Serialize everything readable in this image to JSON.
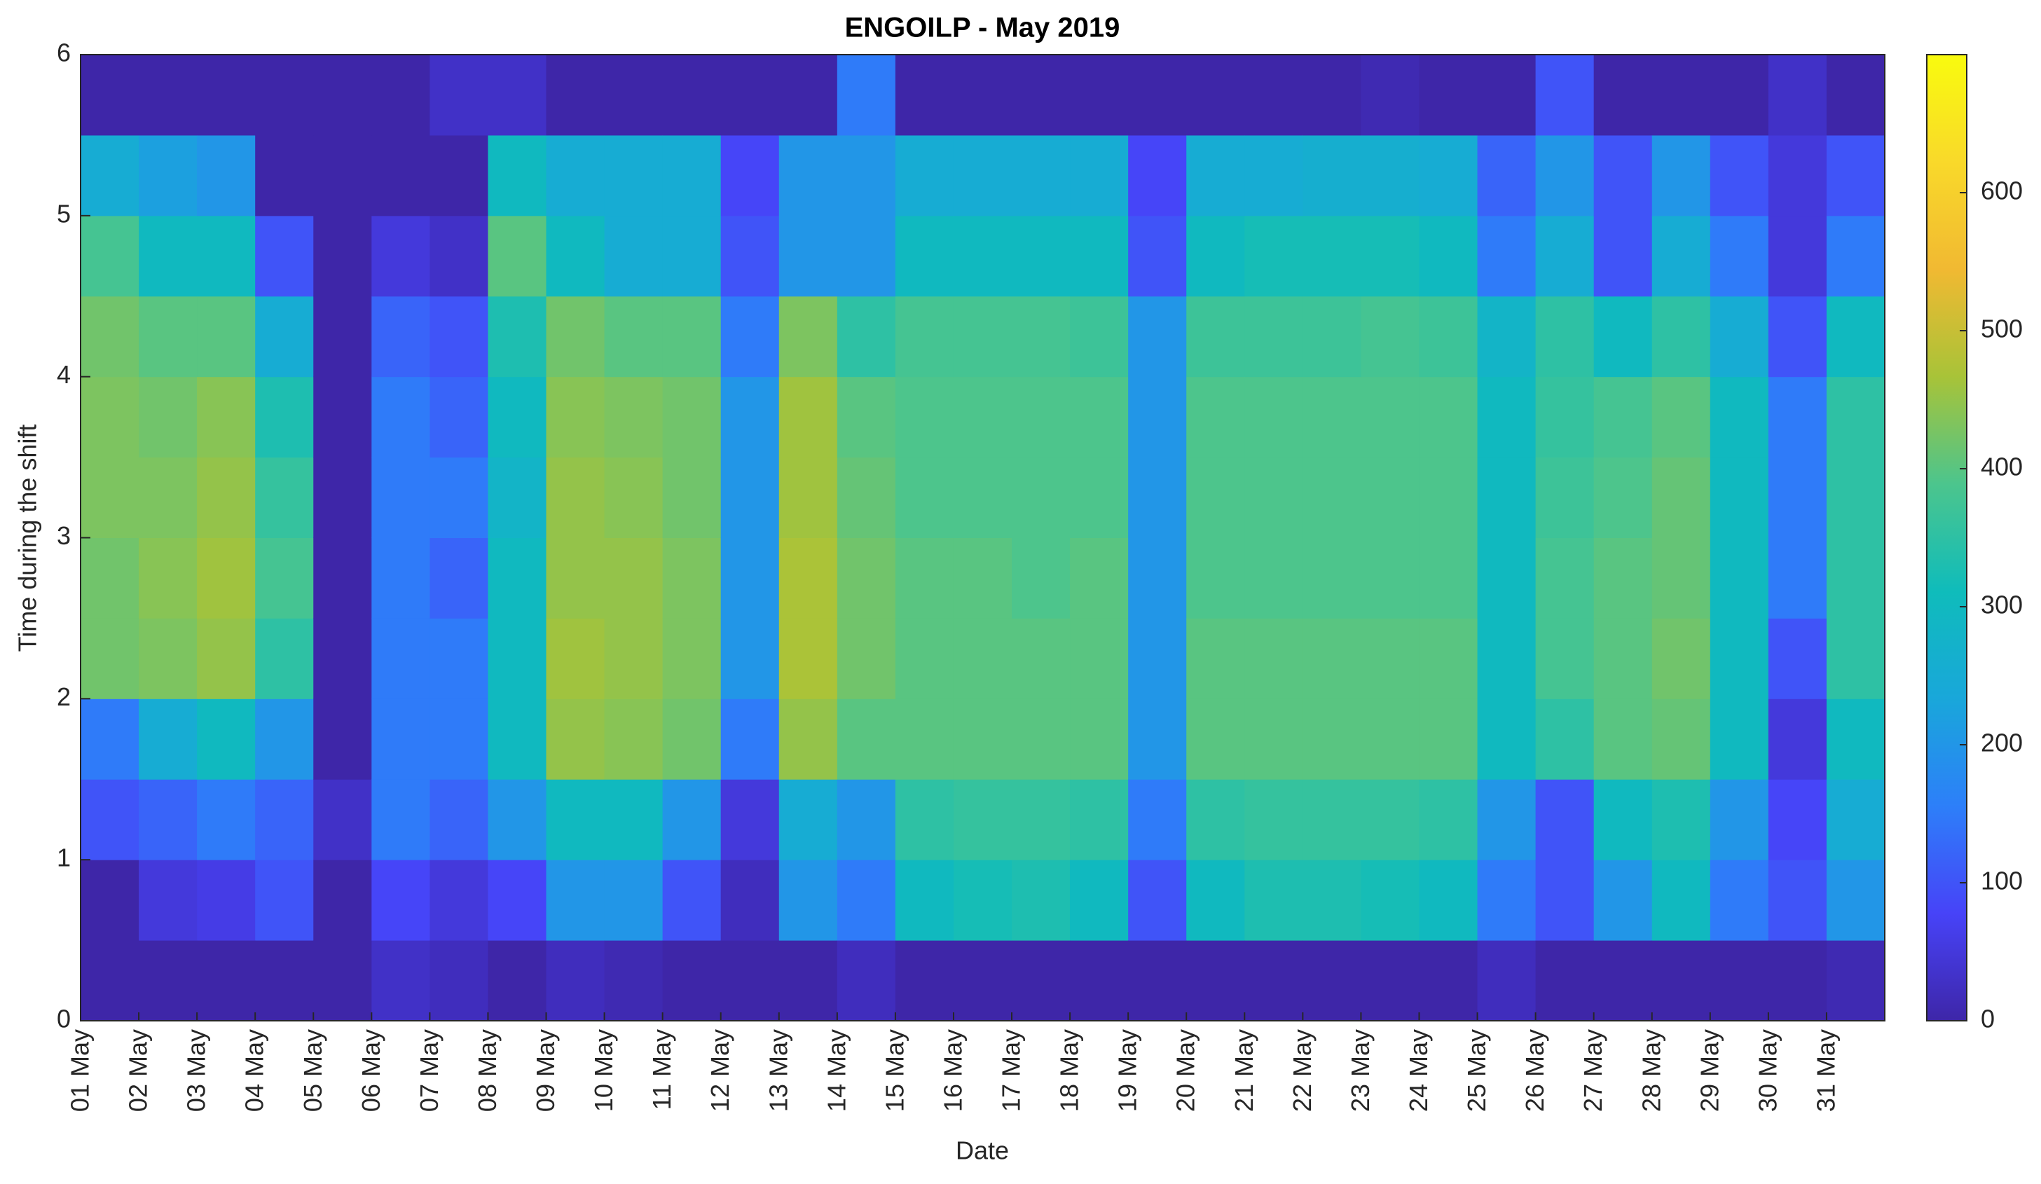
{
  "chart_data": {
    "type": "heatmap",
    "title": "ENGOILP - May 2019",
    "x_label": "Date",
    "y_label": "Time during the shift",
    "categories": [
      "01 May",
      "02 May",
      "03 May",
      "04 May",
      "05 May",
      "06 May",
      "07 May",
      "08 May",
      "09 May",
      "10 May",
      "11 May",
      "12 May",
      "13 May",
      "14 May",
      "15 May",
      "16 May",
      "17 May",
      "18 May",
      "19 May",
      "20 May",
      "21 May",
      "22 May",
      "23 May",
      "24 May",
      "25 May",
      "26 May",
      "27 May",
      "28 May",
      "29 May",
      "30 May",
      "31 May"
    ],
    "ylim": [
      0,
      6
    ],
    "yticks": [
      0,
      1,
      2,
      3,
      4,
      5,
      6
    ],
    "y_edges": [
      0,
      0.5,
      1,
      1.5,
      2,
      2.5,
      3,
      3.5,
      4,
      4.5,
      5,
      5.5,
      6
    ],
    "values": [
      [
        0,
        0,
        100,
        150,
        420,
        420,
        430,
        430,
        420,
        380,
        250,
        0
      ],
      [
        0,
        50,
        120,
        250,
        430,
        440,
        430,
        420,
        400,
        300,
        220,
        0
      ],
      [
        0,
        60,
        150,
        300,
        450,
        460,
        450,
        440,
        400,
        300,
        200,
        0
      ],
      [
        0,
        100,
        120,
        200,
        350,
        380,
        360,
        330,
        250,
        100,
        0,
        0
      ],
      [
        0,
        0,
        30,
        0,
        0,
        0,
        0,
        0,
        0,
        0,
        0,
        0
      ],
      [
        30,
        80,
        150,
        150,
        150,
        150,
        150,
        150,
        120,
        50,
        0,
        0
      ],
      [
        20,
        50,
        120,
        150,
        150,
        120,
        150,
        120,
        100,
        30,
        0,
        30
      ],
      [
        0,
        80,
        200,
        300,
        300,
        300,
        280,
        300,
        330,
        400,
        300,
        30
      ],
      [
        20,
        200,
        300,
        450,
        460,
        450,
        450,
        440,
        420,
        300,
        250,
        0
      ],
      [
        10,
        200,
        300,
        440,
        450,
        450,
        440,
        430,
        400,
        250,
        250,
        0
      ],
      [
        0,
        100,
        200,
        420,
        430,
        430,
        420,
        420,
        400,
        250,
        250,
        0
      ],
      [
        0,
        20,
        50,
        150,
        200,
        200,
        200,
        200,
        150,
        100,
        80,
        0
      ],
      [
        0,
        200,
        250,
        450,
        470,
        470,
        460,
        460,
        430,
        200,
        200,
        0
      ],
      [
        20,
        150,
        200,
        400,
        420,
        420,
        410,
        400,
        350,
        200,
        200,
        150
      ],
      [
        0,
        300,
        350,
        400,
        400,
        400,
        390,
        390,
        380,
        300,
        250,
        0
      ],
      [
        0,
        320,
        360,
        400,
        400,
        400,
        390,
        390,
        380,
        300,
        250,
        0
      ],
      [
        0,
        330,
        360,
        400,
        400,
        390,
        390,
        390,
        380,
        300,
        250,
        0
      ],
      [
        0,
        300,
        350,
        400,
        400,
        400,
        390,
        390,
        370,
        300,
        250,
        0
      ],
      [
        0,
        100,
        150,
        200,
        200,
        200,
        200,
        200,
        200,
        100,
        80,
        0
      ],
      [
        0,
        300,
        350,
        400,
        400,
        390,
        390,
        390,
        370,
        300,
        250,
        0
      ],
      [
        0,
        330,
        360,
        400,
        400,
        390,
        390,
        390,
        370,
        320,
        250,
        0
      ],
      [
        0,
        330,
        360,
        400,
        400,
        390,
        390,
        390,
        370,
        320,
        260,
        0
      ],
      [
        0,
        320,
        360,
        400,
        400,
        390,
        390,
        390,
        380,
        320,
        260,
        10
      ],
      [
        0,
        300,
        350,
        400,
        400,
        390,
        390,
        390,
        370,
        300,
        250,
        0
      ],
      [
        20,
        150,
        200,
        300,
        300,
        300,
        300,
        300,
        280,
        150,
        120,
        0
      ],
      [
        0,
        100,
        100,
        350,
        380,
        380,
        370,
        360,
        350,
        250,
        200,
        100
      ],
      [
        0,
        200,
        300,
        400,
        400,
        400,
        390,
        380,
        300,
        100,
        100,
        0
      ],
      [
        0,
        300,
        330,
        410,
        420,
        410,
        410,
        400,
        350,
        250,
        200,
        0
      ],
      [
        0,
        150,
        200,
        300,
        300,
        300,
        300,
        300,
        250,
        150,
        100,
        0
      ],
      [
        0,
        100,
        80,
        50,
        100,
        150,
        150,
        150,
        100,
        50,
        50,
        30
      ],
      [
        10,
        200,
        250,
        300,
        350,
        350,
        350,
        350,
        300,
        150,
        100,
        0
      ]
    ],
    "colorbar": {
      "lim": [
        0,
        700
      ],
      "ticks": [
        0,
        100,
        200,
        300,
        400,
        500,
        600
      ]
    },
    "colormap": [
      "#3e26a8",
      "#4743f8",
      "#2d7ff9",
      "#19a7da",
      "#0fbcbb",
      "#4cc58d",
      "#a8c338",
      "#f1b932",
      "#f9d92a",
      "#f9fb0e"
    ]
  }
}
